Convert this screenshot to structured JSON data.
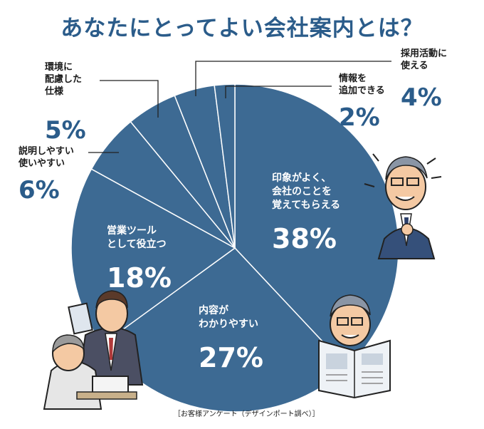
{
  "title": "あなたにとってよい会社案内とは？",
  "source": "［お客様アンケート（デザインポート調べ）］",
  "colors": {
    "accent": "#2b5c8a",
    "slice": "#3d6a93",
    "line": "#ffffff"
  },
  "chart_data": {
    "type": "pie",
    "title": "あなたにとってよい会社案内とは？",
    "slices": [
      {
        "label": [
          "印象がよく、",
          "会社のことを",
          "覚えてもらえる"
        ],
        "value": 38,
        "display": "38%"
      },
      {
        "label": [
          "内容が",
          "わかりやすい"
        ],
        "value": 27,
        "display": "27%"
      },
      {
        "label": [
          "営業ツール",
          "として役立つ"
        ],
        "value": 18,
        "display": "18%"
      },
      {
        "label": [
          "説明しやすい",
          "使いやすい"
        ],
        "value": 6,
        "display": "6%"
      },
      {
        "label": [
          "環境に",
          "配慮した",
          "仕様"
        ],
        "value": 5,
        "display": "5%"
      },
      {
        "label": [
          "採用活動に",
          "使える"
        ],
        "value": 4,
        "display": "4%"
      },
      {
        "label": [
          "情報を",
          "追加できる"
        ],
        "value": 2,
        "display": "2%"
      }
    ]
  }
}
